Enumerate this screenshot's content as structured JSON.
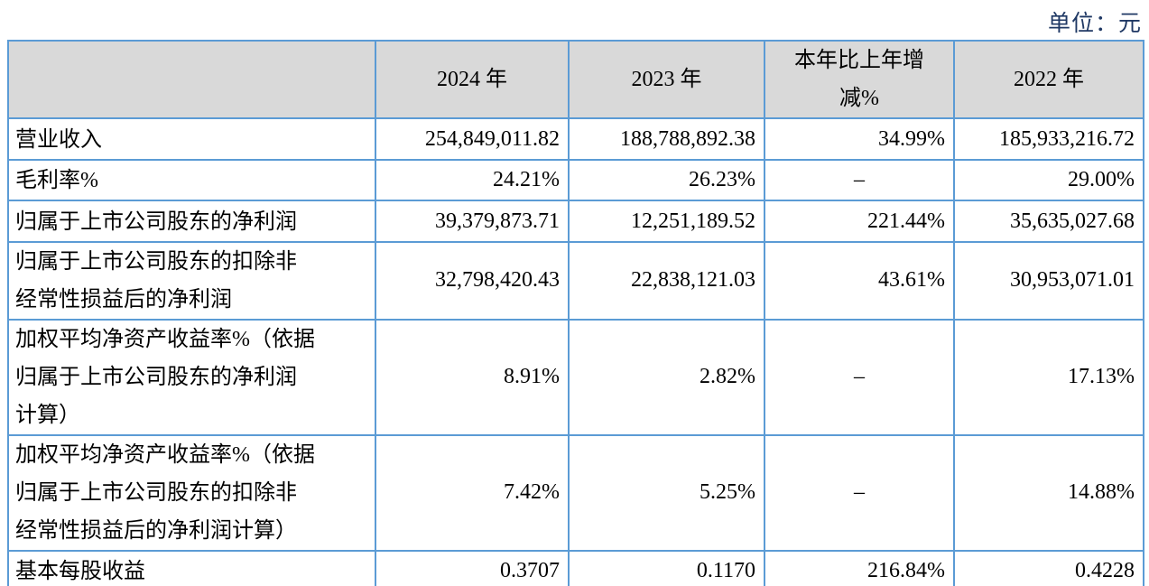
{
  "unit_label": "单位：元",
  "colors": {
    "border_blue": "#5b9bd5",
    "header_bg": "#d9d9d9",
    "unit_text": "#1f3864",
    "body_text": "#000000"
  },
  "table": {
    "columns": {
      "label": "",
      "y2024": "2024 年",
      "y2023": "2023 年",
      "yoy": "本年比上年增减%",
      "y2022": "2022 年"
    },
    "rows": [
      {
        "label": "营业收入",
        "values": [
          "254,849,011.82",
          "188,788,892.38",
          "34.99%",
          "185,933,216.72"
        ]
      },
      {
        "label": "毛利率%",
        "values": [
          "24.21%",
          "26.23%",
          "–",
          "29.00%"
        ]
      },
      {
        "label": "归属于上市公司股东的净利润",
        "values": [
          "39,379,873.71",
          "12,251,189.52",
          "221.44%",
          "35,635,027.68"
        ]
      },
      {
        "label": "归属于上市公司股东的扣除非经常性损益后的净利润",
        "values": [
          "32,798,420.43",
          "22,838,121.03",
          "43.61%",
          "30,953,071.01"
        ]
      },
      {
        "label": "加权平均净资产收益率%（依据归属于上市公司股东的净利润计算）",
        "values": [
          "8.91%",
          "2.82%",
          "–",
          "17.13%"
        ]
      },
      {
        "label": "加权平均净资产收益率%（依据归属于上市公司股东的扣除非经常性损益后的净利润计算）",
        "values": [
          "7.42%",
          "5.25%",
          "–",
          "14.88%"
        ]
      },
      {
        "label": "基本每股收益",
        "values": [
          "0.3707",
          "0.1170",
          "216.84%",
          "0.4228"
        ]
      }
    ]
  }
}
